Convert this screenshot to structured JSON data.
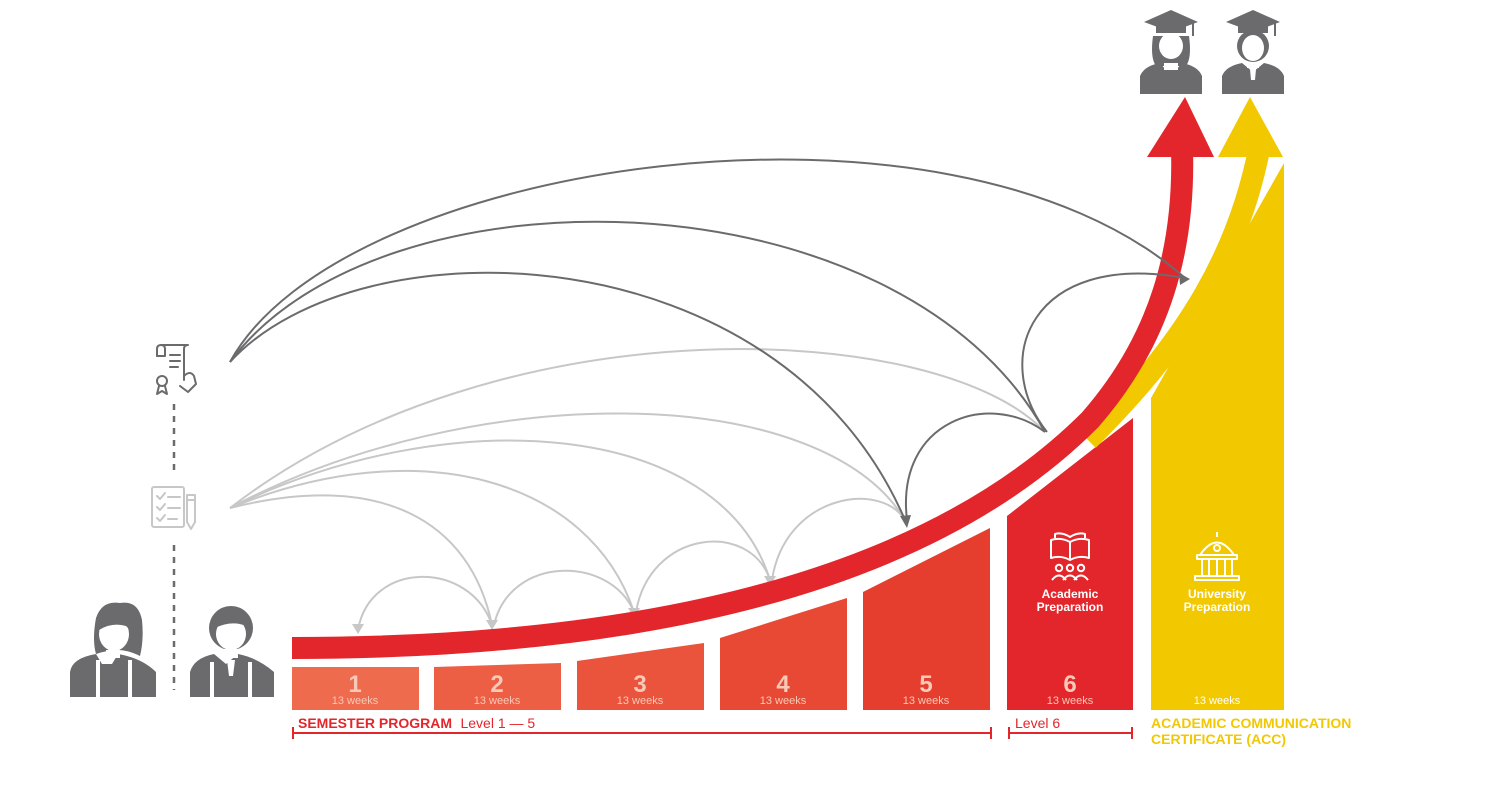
{
  "levels": [
    {
      "number": "1",
      "weeks": "13 weeks"
    },
    {
      "number": "2",
      "weeks": "13 weeks"
    },
    {
      "number": "3",
      "weeks": "13 weeks"
    },
    {
      "number": "4",
      "weeks": "13 weeks"
    },
    {
      "number": "5",
      "weeks": "13 weeks"
    },
    {
      "number": "6",
      "weeks": "13 weeks"
    }
  ],
  "academic_preparation": {
    "line1": "Academic",
    "line2": "Preparation",
    "icon": "book-people-icon"
  },
  "university_preparation": {
    "line1": "University",
    "line2": "Preparation",
    "weeks": "13 weeks",
    "icon": "university-building-icon"
  },
  "labels": {
    "semester_bold": "SEMESTER PROGRAM",
    "semester_rest": "Level 1 — 5",
    "level6": "Level 6",
    "acc_line1": "ACADEMIC COMMUNICATION",
    "acc_line2": "CERTIFICATE (ACC)"
  },
  "icons": {
    "certificate": "certificate-icon",
    "test": "checklist-test-icon",
    "students": "student-icon",
    "graduates": "graduate-icon"
  },
  "colors": {
    "red": "#e3262b",
    "yellow": "#f2c800",
    "gray": "#6b6b6d",
    "light_gray": "#c7c7c7",
    "level_colors": [
      "#ee6b4d",
      "#ec5f44",
      "#ea533c",
      "#e84934",
      "#e53e2f",
      "#e3262b"
    ]
  }
}
